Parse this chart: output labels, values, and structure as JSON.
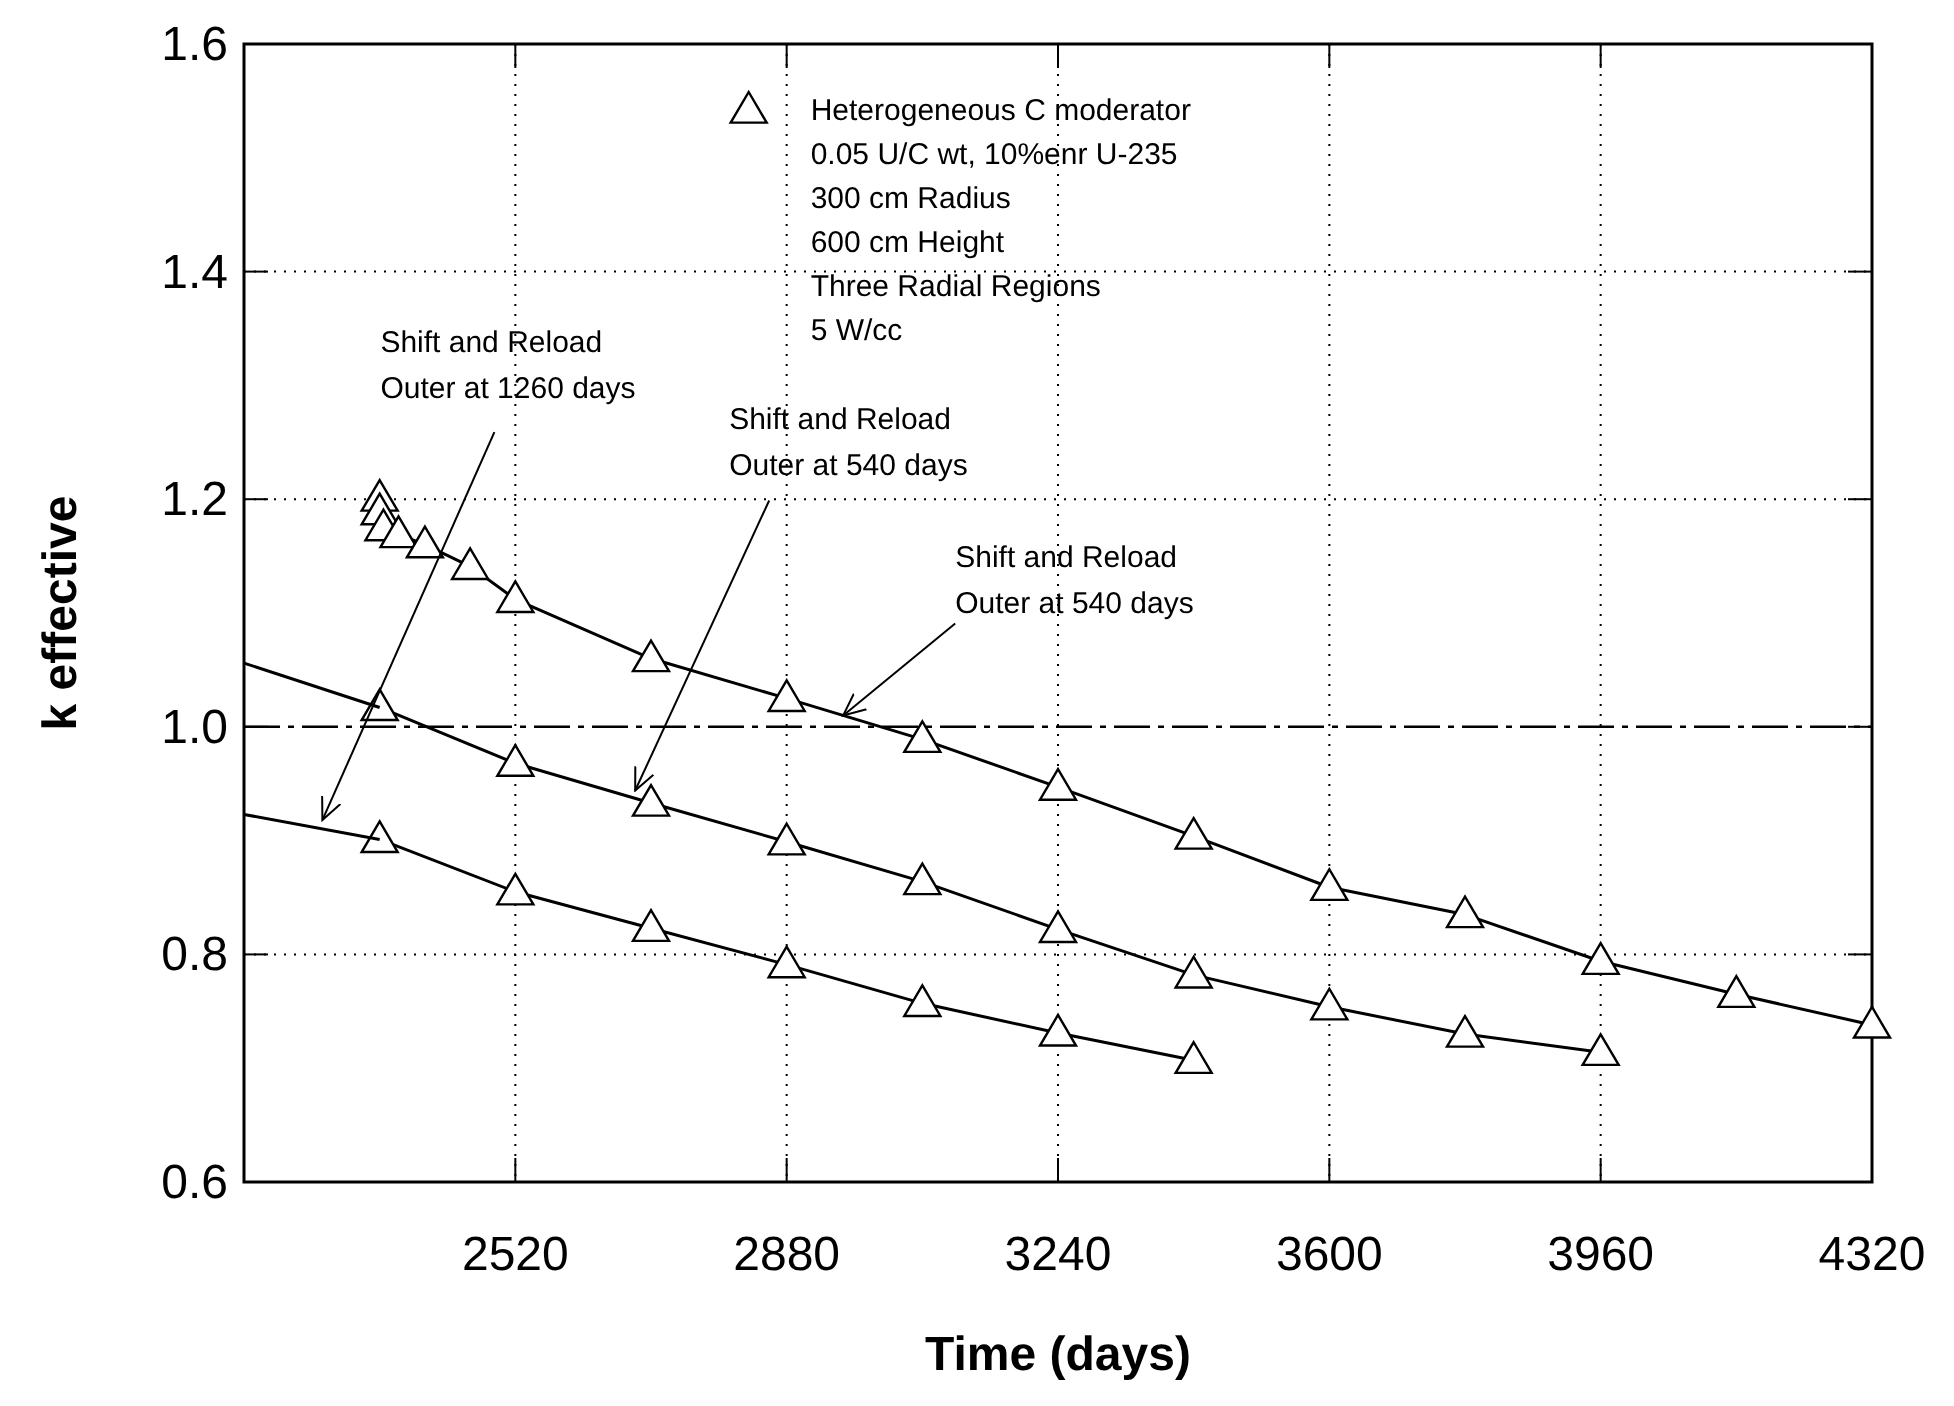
{
  "chart_data": {
    "type": "line",
    "xlabel": "Time (days)",
    "ylabel": "k effective",
    "xlim": [
      2160,
      4320
    ],
    "ylim": [
      0.6,
      1.6
    ],
    "xticks": [
      {
        "value": 2160,
        "label": null
      },
      2520,
      2880,
      3240,
      3600,
      3960,
      4320
    ],
    "yticks": [
      0.6,
      0.8,
      {
        "value": 1,
        "label": "1.0"
      },
      1.2,
      1.4,
      1.6
    ],
    "grid": true,
    "legend": "top",
    "marker": "triangle",
    "line_style": "solid",
    "series": [
      {
        "name": "Heterogeneous C moderator",
        "color": "#000000",
        "x": [
          2340,
          2340,
          2345,
          2365,
          2400,
          2460,
          2520,
          2700,
          2880,
          3060,
          3240,
          3420,
          3600,
          3780,
          3960,
          4140,
          4320
        ],
        "values": [
          1.201,
          1.189,
          1.175,
          1.169,
          1.16,
          1.141,
          1.112,
          1.06,
          1.025,
          0.989,
          0.947,
          0.904,
          0.859,
          0.835,
          0.794,
          0.765,
          0.738
        ]
      },
      {
        "color": "#000000",
        "x": [
          2340,
          2520,
          2700,
          2880,
          3060,
          3240,
          3420,
          3600,
          3780,
          3960
        ],
        "values": [
          1.017,
          0.968,
          0.933,
          0.899,
          0.864,
          0.822,
          0.782,
          0.754,
          0.73,
          0.714
        ]
      },
      {
        "color": "#000000",
        "x": [
          2340,
          2520,
          2700,
          2880,
          3060,
          3240,
          3420
        ],
        "values": [
          0.901,
          0.855,
          0.823,
          0.791,
          0.757,
          0.731,
          0.707
        ]
      },
      {
        "color": "#000000",
        "marker": "none",
        "x": [
          2160,
          2340
        ],
        "values": [
          1.056,
          1.017
        ]
      },
      {
        "color": "#000000",
        "marker": "none",
        "x": [
          2160,
          2340
        ],
        "values": [
          0.923,
          0.901
        ]
      }
    ],
    "ref_lines": [
      {
        "axis": "y",
        "value": 1.0,
        "line_style": "dashdot",
        "color": "#000000"
      }
    ],
    "annotations": [
      "0.05 U/C wt, 10%enr U-235",
      "300 cm Radius",
      "600 cm Height",
      "Three Radial Regions",
      "5 W/cc",
      {
        "text": "Shift and Reload\nOuter at 1260 days",
        "x": 2264,
        "y": 0.918
      },
      {
        "text": "Shift and Reload\nOuter at 540 days",
        "x": 2679,
        "y": 0.944
      },
      {
        "text": "Shift and Reload\nOuter at 540 days",
        "x": 2955,
        "y": 1.01
      }
    ]
  }
}
